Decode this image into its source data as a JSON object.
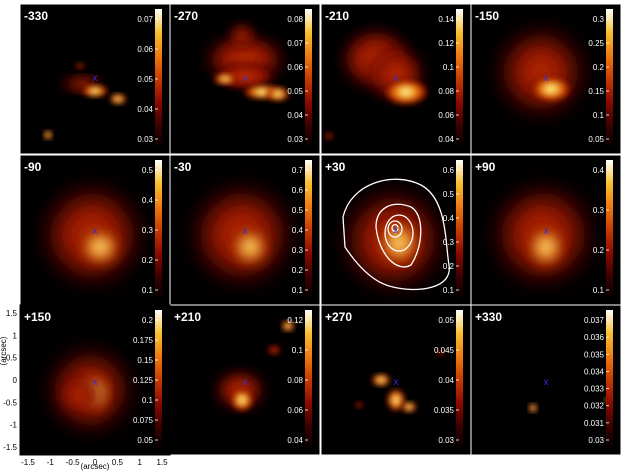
{
  "colorbar": {
    "stops": [
      "#000000",
      "#3a0000",
      "#8a0a00",
      "#c83a00",
      "#ee7a10",
      "#f8c030",
      "#ffffff"
    ]
  },
  "axes": {
    "y_ticks": [
      "1.5",
      "1",
      "0.5",
      "0",
      "-0.5",
      "-1",
      "-1.5"
    ],
    "x_ticks": [
      "-1.5",
      "-1",
      "-0.5",
      "0",
      "0.5",
      "1",
      "1.5"
    ],
    "ylabel": "(arcsec)",
    "xlabel": "(arcsec)"
  },
  "marker_symbol": "x",
  "panels": [
    {
      "label": "-330",
      "ticks": [
        "0.07",
        "0.06",
        "0.05",
        "0.04",
        "0.03"
      ]
    },
    {
      "label": "-270",
      "ticks": [
        "0.08",
        "0.07",
        "0.06",
        "0.05",
        "0.04",
        "0.03"
      ]
    },
    {
      "label": "-210",
      "ticks": [
        "0.14",
        "0.12",
        "0.1",
        "0.08",
        "0.06",
        "0.04"
      ]
    },
    {
      "label": "-150",
      "ticks": [
        "0.3",
        "0.25",
        "0.2",
        "0.15",
        "0.1",
        "0.05"
      ]
    },
    {
      "label": "-90",
      "ticks": [
        "0.5",
        "0.4",
        "0.3",
        "0.2",
        "0.1"
      ]
    },
    {
      "label": "-30",
      "ticks": [
        "0.7",
        "0.6",
        "0.5",
        "0.4",
        "0.3",
        "0.2",
        "0.1"
      ]
    },
    {
      "label": "+30",
      "ticks": [
        "0.6",
        "0.5",
        "0.4",
        "0.3",
        "0.2",
        "0.1"
      ]
    },
    {
      "label": "+90",
      "ticks": [
        "0.4",
        "0.3",
        "0.2",
        "0.1"
      ]
    },
    {
      "label": "+150",
      "ticks": [
        "0.2",
        "0.175",
        "0.15",
        "0.125",
        "0.1",
        "0.075",
        "0.05"
      ]
    },
    {
      "label": "+210",
      "ticks": [
        "0.12",
        "0.1",
        "0.08",
        "0.06",
        "0.04"
      ]
    },
    {
      "label": "+270",
      "ticks": [
        "0.05",
        "0.045",
        "0.04",
        "0.035",
        "0.03"
      ]
    },
    {
      "label": "+330",
      "ticks": [
        "0.037",
        "0.036",
        "0.035",
        "0.034",
        "0.033",
        "0.032",
        "0.031",
        "0.03"
      ]
    }
  ]
}
